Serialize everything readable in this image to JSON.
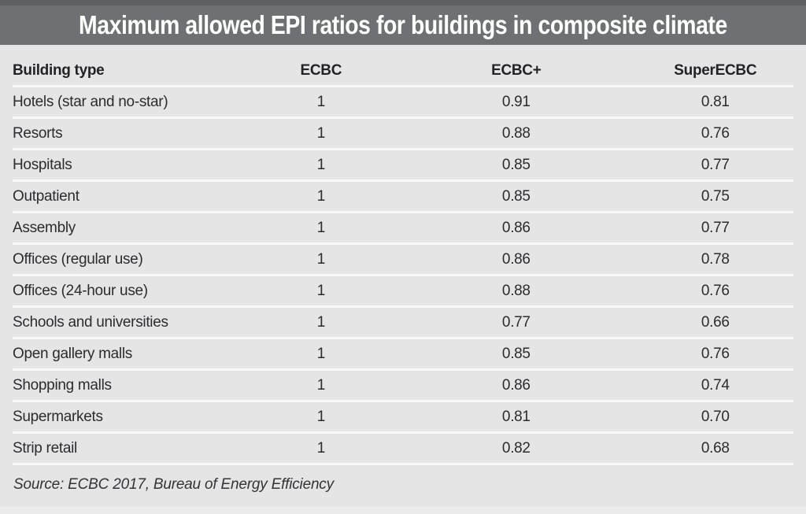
{
  "chart_data": {
    "type": "table",
    "title": "Maximum allowed EPI ratios for buildings in composite climate",
    "columns": [
      "Building type",
      "ECBC",
      "ECBC+",
      "SuperECBC"
    ],
    "rows": [
      [
        "Hotels (star and no-star)",
        "1",
        "0.91",
        "0.81"
      ],
      [
        "Resorts",
        "1",
        "0.88",
        "0.76"
      ],
      [
        "Hospitals",
        "1",
        "0.85",
        "0.77"
      ],
      [
        "Outpatient",
        "1",
        "0.85",
        "0.75"
      ],
      [
        "Assembly",
        "1",
        "0.86",
        "0.77"
      ],
      [
        "Offices (regular use)",
        "1",
        "0.86",
        "0.78"
      ],
      [
        "Offices (24-hour use)",
        "1",
        "0.88",
        "0.76"
      ],
      [
        "Schools and universities",
        "1",
        "0.77",
        "0.66"
      ],
      [
        "Open gallery malls",
        "1",
        "0.85",
        "0.76"
      ],
      [
        "Shopping malls",
        "1",
        "0.86",
        "0.74"
      ],
      [
        "Supermarkets",
        "1",
        "0.81",
        "0.70"
      ],
      [
        "Strip retail",
        "1",
        "0.82",
        "0.68"
      ]
    ],
    "source": "Source: ECBC 2017, Bureau of Energy Efficiency"
  },
  "colors": {
    "banner": "#6f7073",
    "banner_top_edge": "#5f6063",
    "background": "#e5e5e6",
    "separator": "#f9f9fa",
    "title_text": "#ffffff",
    "body_text": "#2c2c2e"
  }
}
